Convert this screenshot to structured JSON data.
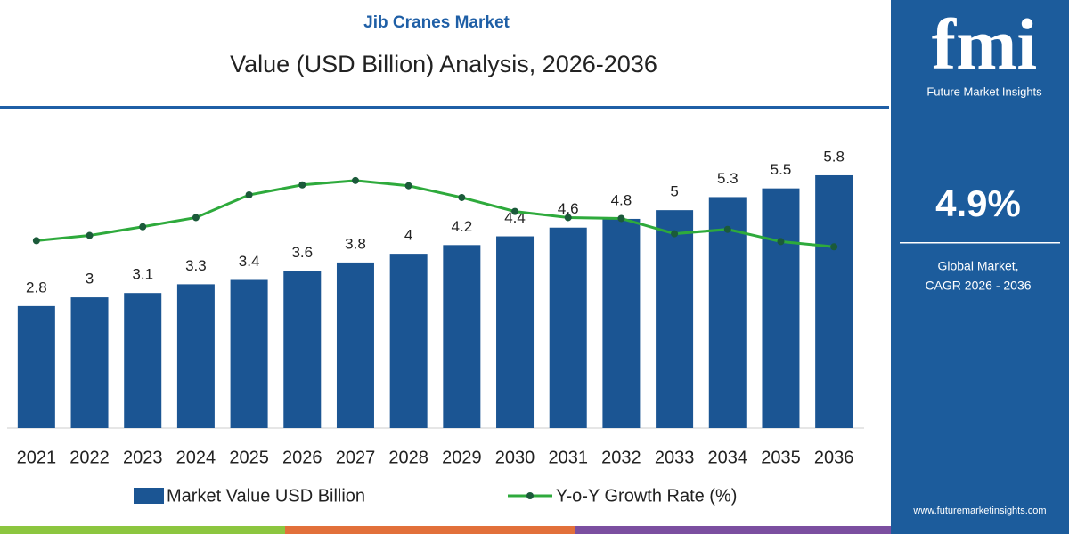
{
  "chart_data": {
    "type": "bar",
    "title": "Jib Cranes Market",
    "subtitle": "Value (USD Billion) Analysis, 2026-2036",
    "categories": [
      "2021",
      "2022",
      "2023",
      "2024",
      "2025",
      "2026",
      "2027",
      "2028",
      "2029",
      "2030",
      "2031",
      "2032",
      "2033",
      "2034",
      "2035",
      "2036"
    ],
    "series": [
      {
        "name": "Market Value USD Billion",
        "type": "bar",
        "color": "#1b5593",
        "values": [
          2.8,
          3.0,
          3.1,
          3.3,
          3.4,
          3.6,
          3.8,
          4.0,
          4.2,
          4.4,
          4.6,
          4.8,
          5.0,
          5.3,
          5.5,
          5.8
        ]
      },
      {
        "name": "Y-o-Y Growth Rate (%)",
        "type": "line",
        "color": "#2eaa3c",
        "values": [
          4.3,
          4.42,
          4.62,
          4.83,
          5.35,
          5.58,
          5.68,
          5.56,
          5.29,
          4.97,
          4.83,
          4.81,
          4.46,
          4.56,
          4.28,
          4.16
        ]
      }
    ],
    "ylim": [
      0,
      6.8
    ]
  },
  "sidebar": {
    "logo": "fmi",
    "brand": "Future Market Insights",
    "cagr": "4.9%",
    "cagr_label": [
      "Global Market,",
      "CAGR 2026 - 2036"
    ],
    "website": "www.futuremarketinsights.com"
  }
}
